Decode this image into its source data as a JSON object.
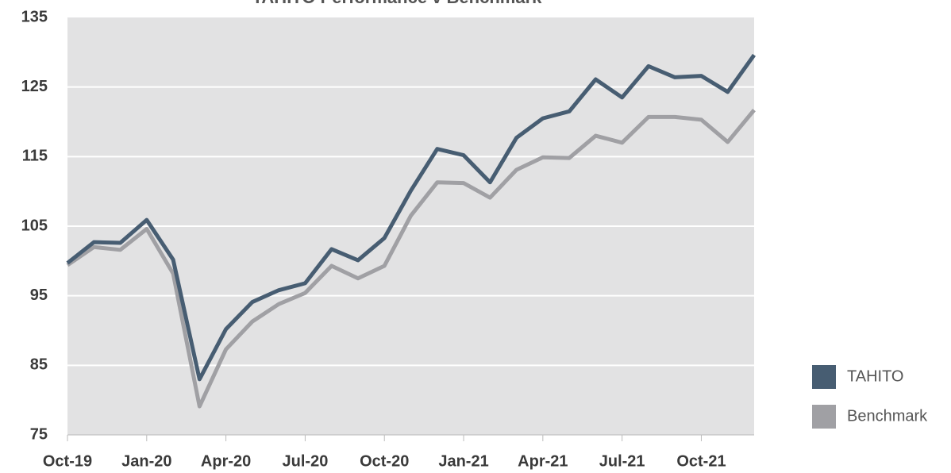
{
  "chart_data": {
    "type": "line",
    "title": "TAHITO Performance v Benchmark",
    "categories": [
      "Oct-19",
      null,
      null,
      "Jan-20",
      null,
      null,
      "Apr-20",
      null,
      null,
      "Jul-20",
      null,
      null,
      "Oct-20",
      null,
      null,
      "Jan-21",
      null,
      null,
      "Apr-21",
      null,
      null,
      "Jul-21",
      null,
      null,
      "Oct-21",
      null,
      null
    ],
    "series": [
      {
        "name": "TAHITO",
        "color": "#475d72",
        "values": [
          99.7,
          102.7,
          102.6,
          105.9,
          100.2,
          83.0,
          90.2,
          94.1,
          95.8,
          96.8,
          101.7,
          100.1,
          103.3,
          110.1,
          116.1,
          115.2,
          111.3,
          117.7,
          120.5,
          121.5,
          126.1,
          123.5,
          128.0,
          126.4,
          126.6,
          124.3,
          129.6
        ]
      },
      {
        "name": "Benchmark",
        "color": "#a0a0a4",
        "values": [
          99.4,
          102.0,
          101.6,
          104.6,
          98.2,
          79.1,
          87.3,
          91.3,
          93.8,
          95.4,
          99.3,
          97.5,
          99.3,
          106.5,
          111.3,
          111.2,
          109.1,
          113.1,
          114.9,
          114.8,
          118.0,
          117.0,
          120.7,
          120.7,
          120.3,
          117.1,
          121.7
        ]
      }
    ],
    "ylim": [
      75,
      135
    ],
    "yticks": [
      75,
      85,
      95,
      105,
      115,
      125,
      135
    ],
    "grid": true,
    "legend": "right"
  }
}
